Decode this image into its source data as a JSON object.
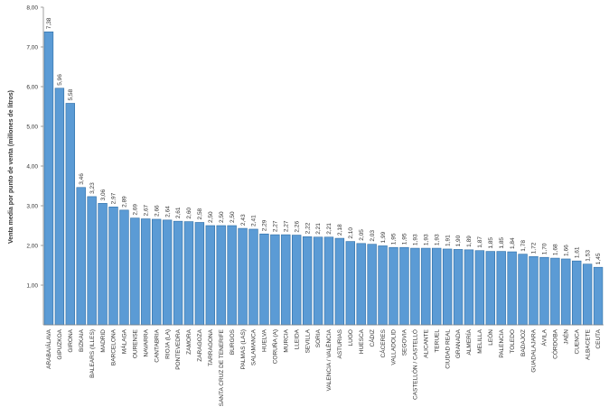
{
  "chart_data": {
    "type": "bar",
    "ylabel": "Venta media por punto de venta (millones de litros)",
    "ylim": [
      0,
      8
    ],
    "yticks": [
      "1,00",
      "2,00",
      "3,00",
      "4,00",
      "5,00",
      "6,00",
      "7,00",
      "8,00"
    ],
    "grid": false,
    "bar_color": "#5b9bd5",
    "categories": [
      "ARABA/ÁLAVA",
      "GIPUZKOA",
      "GIRONA",
      "BIZKAIA",
      "BALEARS (ILLES)",
      "MADRID",
      "BARCELONA",
      "MÁLAGA",
      "OURENSE",
      "NAVARRA",
      "CANTABRIA",
      "RIOJA (LA)",
      "PONTEVEDRA",
      "ZAMORA",
      "ZARAGOZA",
      "TARRAGONA",
      "SANTA CRUZ DE TENERIFE",
      "BURGOS",
      "PALMAS (LAS)",
      "SALAMANCA",
      "HUELVA",
      "CORUÑA (A)",
      "MURCIA",
      "LLEIDA",
      "SEVILLA",
      "SORIA",
      "VALENCIA / VALÈNCIA",
      "ASTURIAS",
      "LUGO",
      "HUESCA",
      "CÁDIZ",
      "CÁCERES",
      "VALLADOLID",
      "SEGOVIA",
      "CASTELLÓN / CASTELLÓ",
      "ALICANTE",
      "TERUEL",
      "CIUDAD REAL",
      "GRANADA",
      "ALMERÍA",
      "MELILLA",
      "LEÓN",
      "PALENCIA",
      "TOLEDO",
      "BADAJOZ",
      "GUADALAJARA",
      "ÁVILA",
      "CÓRDOBA",
      "JAÉN",
      "CUENCA",
      "ALBACETE",
      "CEUTA"
    ],
    "values": [
      7.38,
      5.96,
      5.58,
      3.46,
      3.23,
      3.06,
      2.97,
      2.89,
      2.69,
      2.67,
      2.66,
      2.64,
      2.61,
      2.6,
      2.58,
      2.5,
      2.5,
      2.5,
      2.43,
      2.41,
      2.29,
      2.27,
      2.27,
      2.26,
      2.22,
      2.21,
      2.21,
      2.18,
      2.1,
      2.05,
      2.03,
      1.99,
      1.95,
      1.95,
      1.93,
      1.93,
      1.93,
      1.91,
      1.9,
      1.89,
      1.87,
      1.85,
      1.85,
      1.84,
      1.78,
      1.72,
      1.7,
      1.68,
      1.66,
      1.61,
      1.53,
      1.45
    ],
    "value_labels": [
      "7,38",
      "5,96",
      "5,58",
      "3,46",
      "3,23",
      "3,06",
      "2,97",
      "2,89",
      "2,69",
      "2,67",
      "2,66",
      "2,64",
      "2,61",
      "2,60",
      "2,58",
      "2,50",
      "2,50",
      "2,50",
      "2,43",
      "2,41",
      "2,29",
      "2,27",
      "2,27",
      "2,26",
      "2,22",
      "2,21",
      "2,21",
      "2,18",
      "2,10",
      "2,05",
      "2,03",
      "1,99",
      "1,95",
      "1,95",
      "1,93",
      "1,93",
      "1,93",
      "1,91",
      "1,90",
      "1,89",
      "1,87",
      "1,85",
      "1,85",
      "1,84",
      "1,78",
      "1,72",
      "1,70",
      "1,68",
      "1,66",
      "1,61",
      "1,53",
      "1,45"
    ]
  }
}
